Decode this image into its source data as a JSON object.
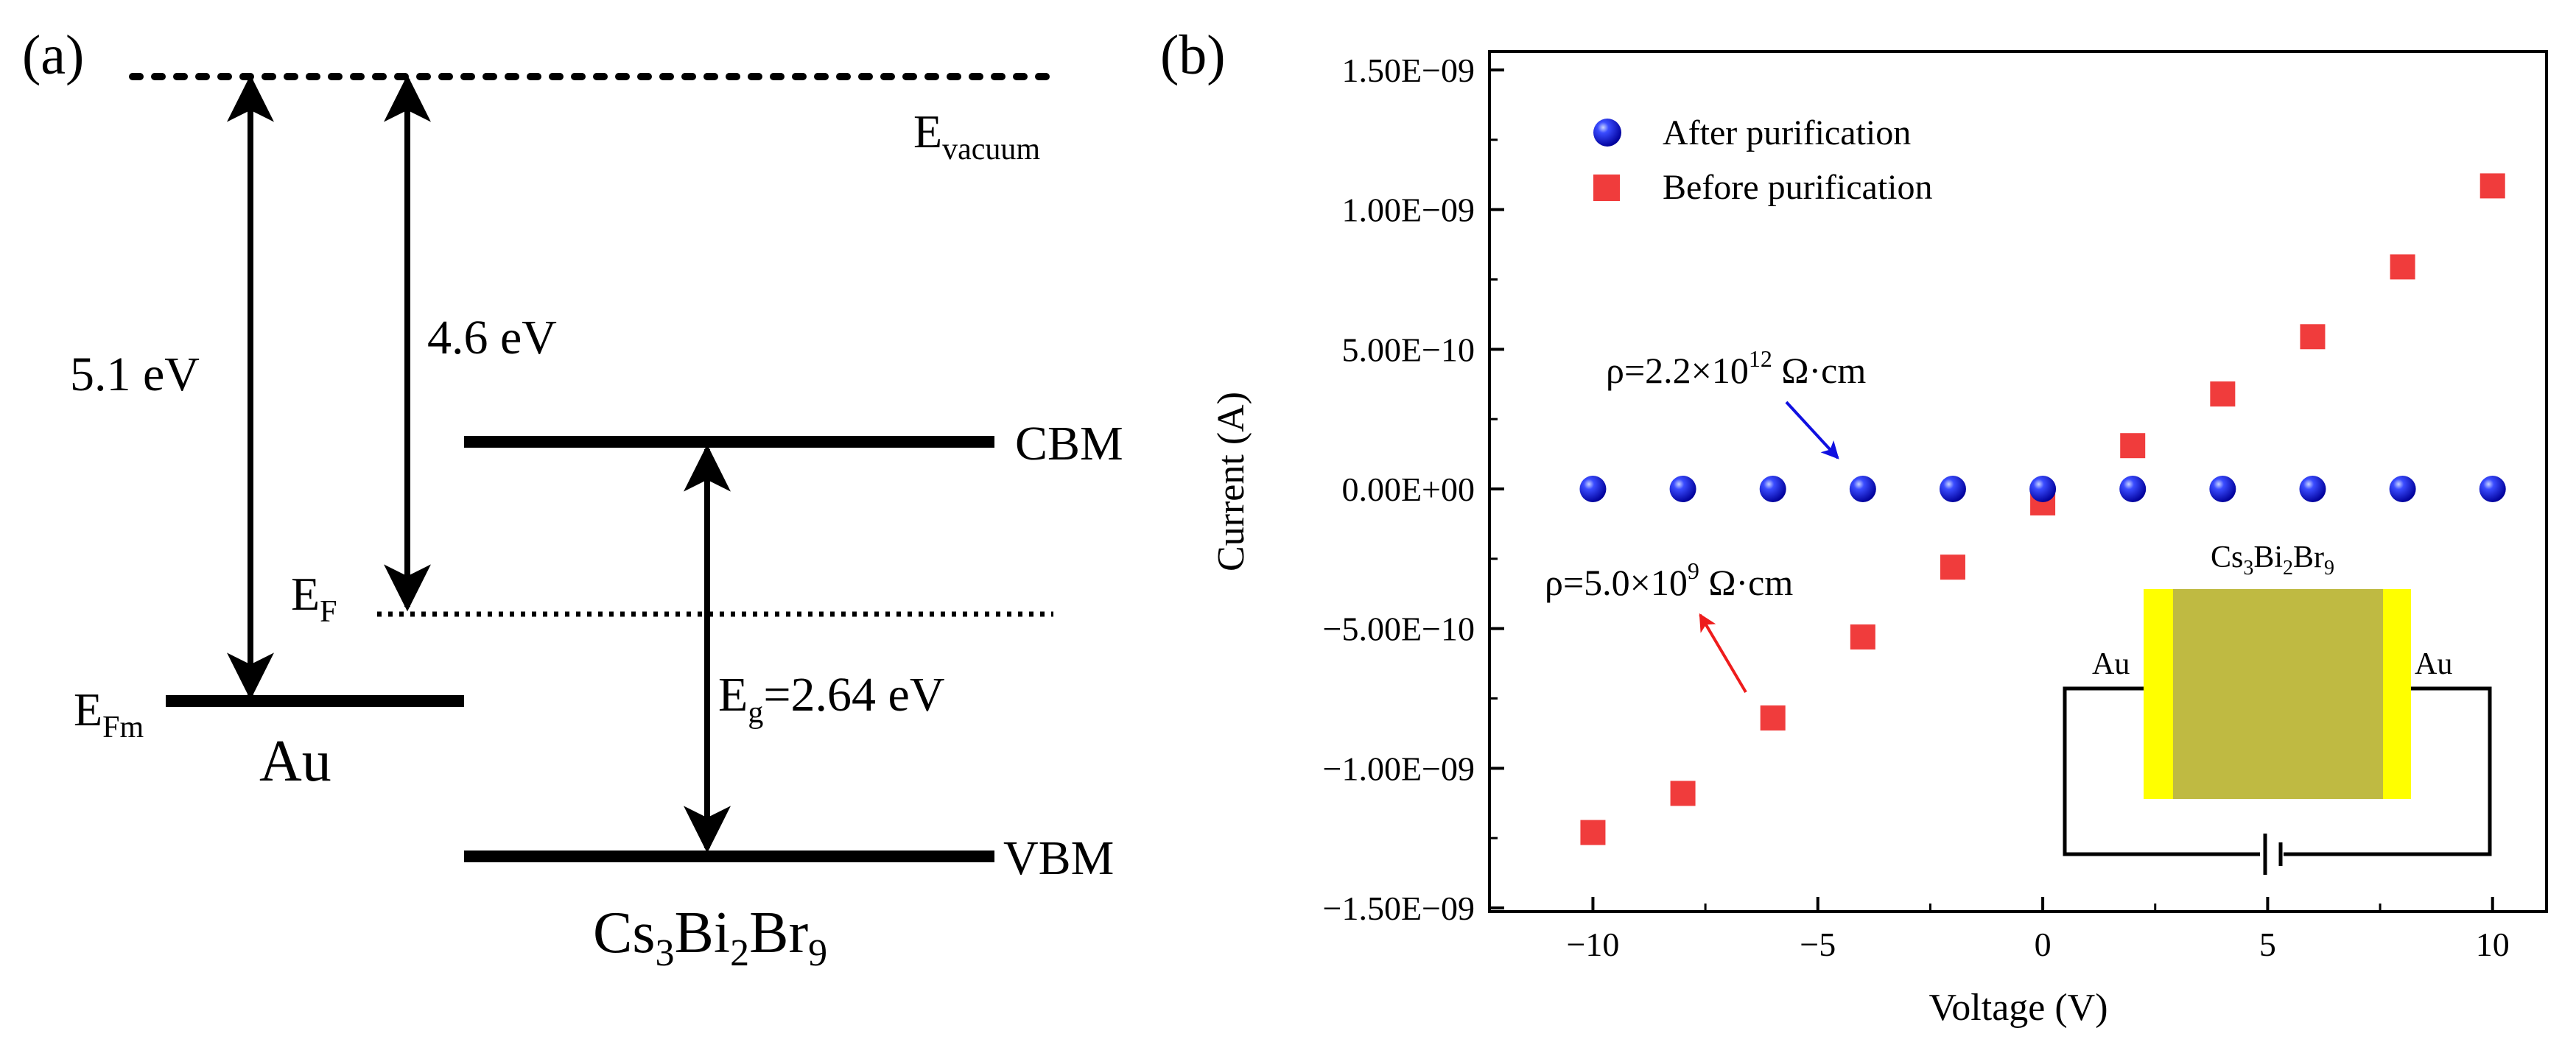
{
  "panel_a": {
    "label": "(a)",
    "vacuum": {
      "base": "E",
      "sub": "vacuum"
    },
    "arrow_left_label": "5.1 eV",
    "arrow_right_label": "4.6 eV",
    "cbm": "CBM",
    "vbm": "VBM",
    "ef": {
      "base": "E",
      "sub": "F"
    },
    "efm": {
      "base": "E",
      "sub": "Fm"
    },
    "au": "Au",
    "eg": {
      "base": "E",
      "sub": "g",
      "rest": "=2.64 eV"
    },
    "material": {
      "a": "Cs",
      "s1": "3",
      "b": "Bi",
      "s2": "2",
      "c": "Br",
      "s3": "9"
    }
  },
  "panel_b": {
    "label": "(b)",
    "annotations": {
      "after": {
        "pre": "ρ=2.2×10",
        "sup": "12",
        "post": " Ω·cm",
        "color": "#1010e0"
      },
      "before": {
        "pre": "ρ=5.0×10",
        "sup": "9",
        "post": " Ω·cm",
        "color": "#ee1c1c"
      }
    },
    "inset": {
      "title": {
        "a": "Cs",
        "s1": "3",
        "b": "Bi",
        "s2": "2",
        "c": "Br",
        "s3": "9"
      },
      "left_electrode": "Au",
      "right_electrode": "Au",
      "electrode_color": "#ffff00",
      "crystal_color": "#bfba42"
    }
  },
  "chart_data": {
    "type": "scatter",
    "title": "",
    "xlabel": "Voltage (V)",
    "ylabel": "Current (A)",
    "xlim": [
      -12.3,
      11.2
    ],
    "ylim": [
      -1.5e-09,
      1.5e-09
    ],
    "x_ticks": [
      -10,
      -5,
      0,
      5,
      10
    ],
    "x_tick_labels": [
      "−10",
      "−5",
      "0",
      "5",
      "10"
    ],
    "y_ticks": [
      1.5e-09,
      1e-09,
      5e-10,
      0,
      -5e-10,
      -1e-09,
      -1.5e-09
    ],
    "y_tick_labels": [
      "1.50E−09",
      "1.00E−09",
      "5.00E−10",
      "0.00E+00",
      "−5.00E−10",
      "−1.00E−09",
      "−1.50E−09"
    ],
    "legend_position": "top-left",
    "series": [
      {
        "name": "After purification",
        "marker": "sphere",
        "color": "#0000ee",
        "x": [
          -10,
          -8,
          -6,
          -4,
          -2,
          0,
          2,
          4,
          6,
          8,
          10
        ],
        "y": [
          0,
          0,
          0,
          0,
          0,
          0,
          0,
          0,
          0,
          0,
          0
        ]
      },
      {
        "name": "Before purification",
        "marker": "square",
        "color": "#f03c3c",
        "x": [
          -10,
          -8,
          -6,
          -4,
          -2,
          0,
          2,
          4,
          6,
          8,
          10
        ],
        "y": [
          -1.23e-09,
          -1.09e-09,
          -8.2e-10,
          -5.3e-10,
          -2.8e-10,
          -5e-11,
          1.55e-10,
          3.4e-10,
          5.45e-10,
          7.95e-10,
          1.085e-09
        ]
      }
    ]
  }
}
